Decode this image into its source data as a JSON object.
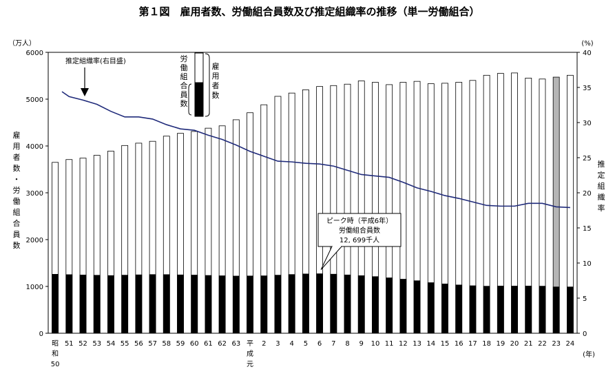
{
  "chart_data": {
    "type": "bar",
    "title": "第１図　雇用者数、労働組合員数及び推定組織率の推移（単一労働組合）",
    "left_unit": "（万人）",
    "right_unit": "(%)",
    "x_unit": "(年)",
    "left_ylabel": "雇用者数・労働組合員数",
    "right_ylabel": "推定組織率",
    "left_ylim": [
      0,
      6000
    ],
    "left_ticks": [
      "0",
      "1000",
      "2000",
      "3000",
      "4000",
      "5000",
      "6000"
    ],
    "right_ylim": [
      0,
      40
    ],
    "right_ticks": [
      "0",
      "5",
      "10",
      "15",
      "20",
      "25",
      "30",
      "35",
      "40"
    ],
    "categories": [
      "昭和50",
      "51",
      "52",
      "53",
      "54",
      "55",
      "56",
      "57",
      "58",
      "59",
      "60",
      "61",
      "62",
      "63",
      "平成元",
      "2",
      "3",
      "4",
      "5",
      "6",
      "7",
      "8",
      "9",
      "10",
      "11",
      "12",
      "13",
      "14",
      "15",
      "16",
      "17",
      "18",
      "19",
      "20",
      "21",
      "22",
      "23",
      "24"
    ],
    "series": [
      {
        "name": "雇用者数",
        "axis": "left",
        "color": "#ffffff",
        "values": [
          3650,
          3710,
          3740,
          3800,
          3890,
          4010,
          4060,
          4100,
          4210,
          4270,
          4310,
          4380,
          4430,
          4560,
          4710,
          4880,
          5060,
          5130,
          5200,
          5270,
          5290,
          5320,
          5390,
          5360,
          5310,
          5360,
          5380,
          5330,
          5340,
          5360,
          5400,
          5510,
          5550,
          5560,
          5450,
          5430,
          5470,
          5510
        ]
      },
      {
        "name": "労働組合員数",
        "axis": "left",
        "color": "#000000",
        "values": [
          1259,
          1251,
          1244,
          1238,
          1231,
          1240,
          1247,
          1253,
          1252,
          1246,
          1242,
          1234,
          1227,
          1221,
          1223,
          1226,
          1240,
          1254,
          1266,
          1270,
          1261,
          1245,
          1229,
          1209,
          1183,
          1154,
          1121,
          1080,
          1053,
          1031,
          1014,
          1004,
          1008,
          1007,
          1008,
          1005,
          989,
          989
        ]
      },
      {
        "name": "推定組織率",
        "axis": "right",
        "color": "#1f2a7a",
        "values": [
          34.4,
          33.7,
          33.2,
          32.6,
          31.6,
          30.8,
          30.8,
          30.5,
          29.7,
          29.1,
          28.9,
          28.2,
          27.6,
          26.8,
          25.9,
          25.2,
          24.5,
          24.4,
          24.2,
          24.1,
          23.8,
          23.2,
          22.6,
          22.4,
          22.2,
          21.5,
          20.7,
          20.2,
          19.6,
          19.2,
          18.7,
          18.2,
          18.1,
          18.1,
          18.5,
          18.5,
          18.0,
          17.9
        ]
      }
    ],
    "highlight_bar": "23",
    "highlight_color": "#b5b5b5",
    "annotations": {
      "rate_arrow": "推定組織率(右目盛)",
      "legend_members": "労働組合員数",
      "legend_employees": "雇用者数",
      "peak_line1": "ピーク時（平成6年）",
      "peak_line2": "労働組合員数",
      "peak_line3": "12, 699千人"
    },
    "legend": "inline-top-left",
    "grid": false
  }
}
